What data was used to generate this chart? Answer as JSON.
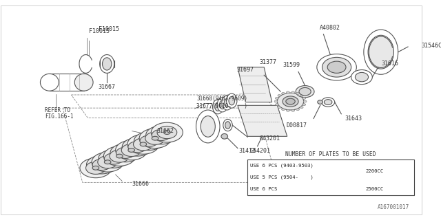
{
  "background_color": "#ffffff",
  "line_color": "#555555",
  "watermark": "A167001017",
  "table_title": "NUMBER OF PLATES TO BE USED",
  "table_rows": [
    [
      "USE 6 PCS (9403-9503)",
      "2200CC"
    ],
    [
      "USE 5 PCS (9504-    )",
      "2200CC"
    ],
    [
      "USE 6 PCS",
      "2500CC"
    ]
  ],
  "label_fontsize": 6.0,
  "mono_font": "monospace"
}
